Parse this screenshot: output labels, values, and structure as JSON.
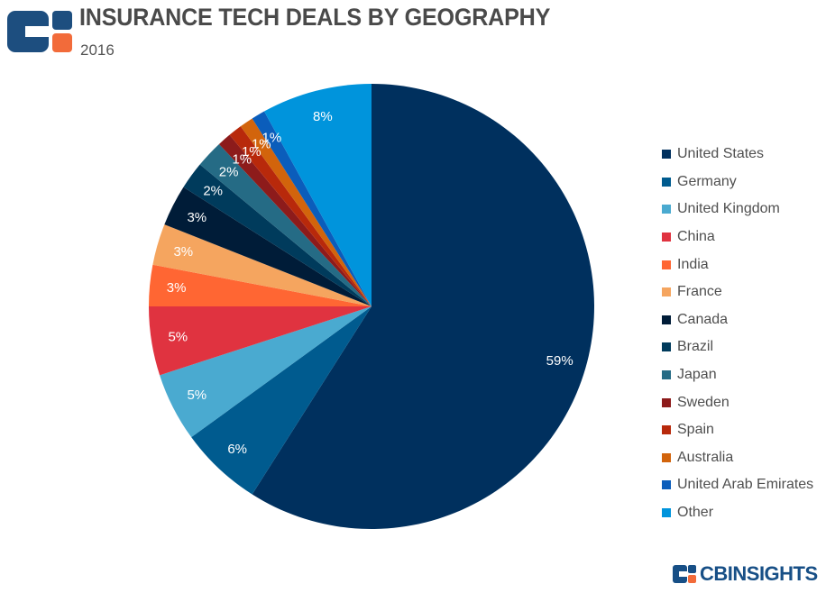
{
  "header": {
    "title": "INSURANCE TECH DEALS BY GEOGRAPHY",
    "subtitle": "2016",
    "logo_colors": {
      "primary": "#1d4e7f",
      "accent": "#f26b3a"
    }
  },
  "chart_data": {
    "type": "pie",
    "title": "INSURANCE TECH DEALS BY GEOGRAPHY",
    "subtitle": "2016",
    "start": "12 o'clock, clockwise",
    "legend_position": "right",
    "unit": "%",
    "slices": [
      {
        "label": "United States",
        "value": 59,
        "display": "59%",
        "color": "#00305e"
      },
      {
        "label": "Germany",
        "value": 6,
        "display": "6%",
        "color": "#005b8f"
      },
      {
        "label": "United Kingdom",
        "value": 5,
        "display": "5%",
        "color": "#4aaad0"
      },
      {
        "label": "China",
        "value": 5,
        "display": "5%",
        "color": "#e03340"
      },
      {
        "label": "India",
        "value": 3,
        "display": "3%",
        "color": "#ff6633"
      },
      {
        "label": "France",
        "value": 3,
        "display": "3%",
        "color": "#f5a55f"
      },
      {
        "label": "Canada",
        "value": 3,
        "display": "3%",
        "color": "#001c38"
      },
      {
        "label": "Brazil",
        "value": 2,
        "display": "2%",
        "color": "#003b5c"
      },
      {
        "label": "Japan",
        "value": 2,
        "display": "2%",
        "color": "#256b85"
      },
      {
        "label": "Sweden",
        "value": 1,
        "display": "1%",
        "color": "#8d1b1b"
      },
      {
        "label": "Spain",
        "value": 1,
        "display": "1%",
        "color": "#b8290b"
      },
      {
        "label": "Australia",
        "value": 1,
        "display": "1%",
        "color": "#d2640c"
      },
      {
        "label": "United Arab Emirates",
        "value": 1,
        "display": "1%",
        "color": "#0b5dbb"
      },
      {
        "label": "Other",
        "value": 8,
        "display": "8%",
        "color": "#0094dc"
      }
    ]
  },
  "footer": {
    "brand_text": "CBINSIGHTS",
    "brand_color": "#174f86"
  }
}
